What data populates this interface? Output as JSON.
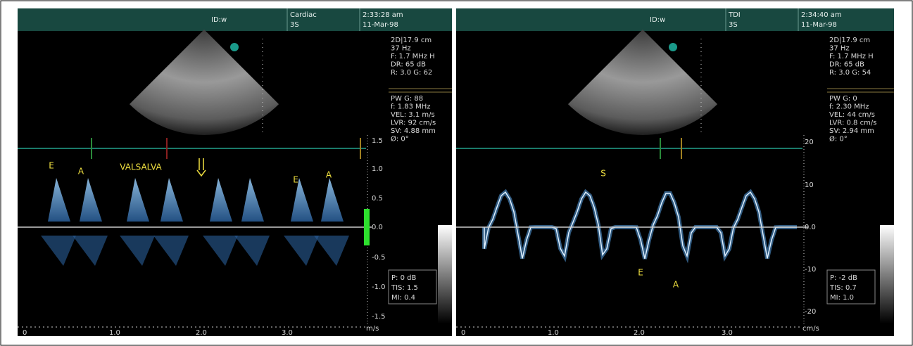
{
  "panels": [
    {
      "header": {
        "id": "ID:w",
        "mode": "Cardiac",
        "probe": "3S",
        "time": "2:33:28 am",
        "date": "11-Mar-98"
      },
      "info": [
        "2D|17.9 cm",
        "37 Hz",
        "F: 1.7 MHz H",
        "DR: 65 dB",
        "R: 3.0  G: 62",
        "PW G: 88",
        "f: 1.83 MHz",
        "VEL: 3.1 m/s",
        "LVR: 92 cm/s",
        "SV: 4.88 mm",
        "Ø: 0°"
      ],
      "annotations": [
        "E",
        "A",
        "VALSALVA",
        "E",
        "A"
      ],
      "y_axis": [
        "1.5",
        "1.0",
        "0.5",
        "0.0",
        "-0.5",
        "-1.0",
        "-1.5"
      ],
      "y_unit": "m/s",
      "x_axis": [
        "0",
        "1.0",
        "2.0",
        "3.0"
      ],
      "output": [
        "P: 0 dB",
        "TIS: 1.5",
        "MI: 0.4"
      ]
    },
    {
      "header": {
        "id": "ID:w",
        "mode": "TDI",
        "probe": "3S",
        "time": "2:34:40 am",
        "date": "11-Mar-98"
      },
      "info": [
        "2D|17.9 cm",
        "37 Hz",
        "F: 1.7 MHz H",
        "DR: 65 dB",
        "R: 3.0  G: 54",
        "PW G: 0",
        "f: 2.30 MHz",
        "VEL: 44 cm/s",
        "LVR: 0.8 cm/s",
        "SV: 2.94 mm",
        "Ø: 0°"
      ],
      "annotations": [
        "S",
        "E",
        "A"
      ],
      "y_axis": [
        "20",
        "10",
        "0.0",
        "-10",
        "-20"
      ],
      "y_unit": "cm/s",
      "x_axis": [
        "0",
        "1.0",
        "2.0",
        "3.0"
      ],
      "output": [
        "P: -2 dB",
        "TIS: 0.7",
        "MI: 1.0"
      ]
    }
  ]
}
